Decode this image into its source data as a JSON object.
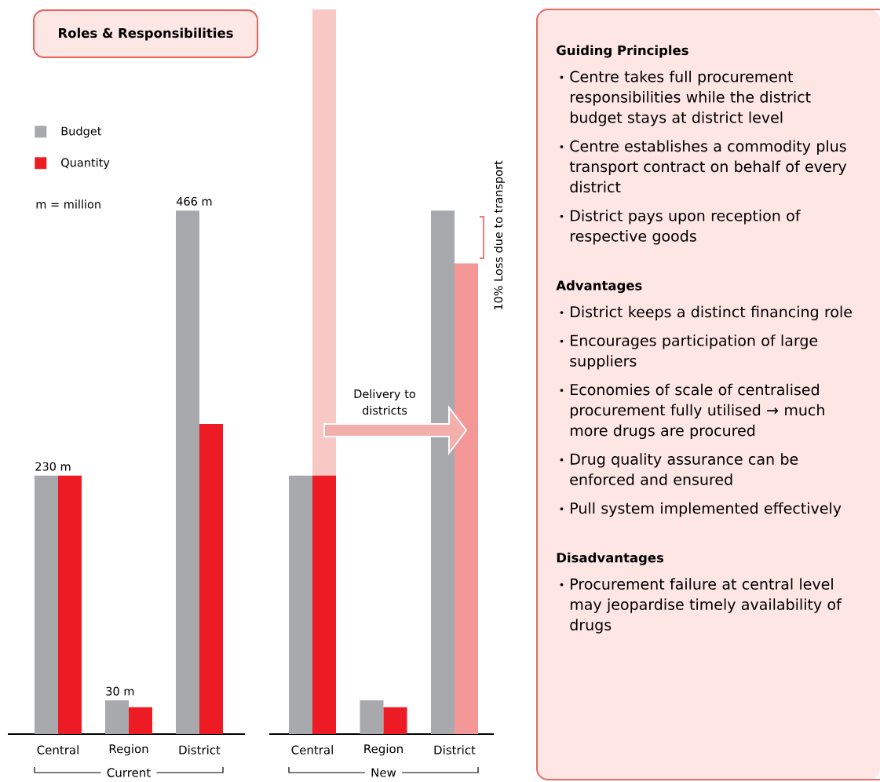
{
  "chart_data": [
    {
      "type": "bar",
      "title": "Roles & Responsibilities",
      "categories": [
        "Central",
        "Region",
        "District",
        null,
        "Central",
        "Region",
        "District"
      ],
      "series": [
        {
          "name": "Budget",
          "color": "#a7a9ac",
          "values": [
            230,
            30,
            466,
            null,
            230,
            30,
            466
          ],
          "value_labels": [
            "230 m",
            "30 m",
            "466 m",
            null,
            null,
            null,
            null
          ]
        },
        {
          "name": "Quantity",
          "color": "#ed1c24",
          "values": [
            230,
            24,
            276,
            null,
            230,
            24,
            null
          ]
        },
        {
          "colors": [
            null,
            null,
            null,
            null,
            "#f8c8c5",
            null,
            "#f39896"
          ],
          "values": [
            null,
            null,
            null,
            null,
            645,
            null,
            419
          ]
        }
      ],
      "legend": "top left",
      "annotations": [
        "m = million",
        "Current",
        "New",
        "Delivery to districts",
        "10% Loss due to transport"
      ]
    },
    {
      "type": "other",
      "title": "Guiding Principles",
      "annotations": [
        "Centre takes full procurement responsibilities while the district budget stays at district level",
        "Centre establishes a commodity plus transport contract on behalf of every district",
        "District pays upon reception of respective goods"
      ]
    },
    {
      "type": "other",
      "title": "Advantages",
      "annotations": [
        "District keeps a distinct financing role",
        "Encourages participation of large suppliers",
        "Economies of scale of centralised procurement fully utilised → much more drugs are procured",
        "Drug quality assurance can be enforced and ensured",
        "Pull system implemented effectively"
      ]
    },
    {
      "type": "other",
      "title": "Disadvantages",
      "annotations": [
        "Procurement failure at central level may jeopardise timely availability of drugs"
      ]
    }
  ]
}
